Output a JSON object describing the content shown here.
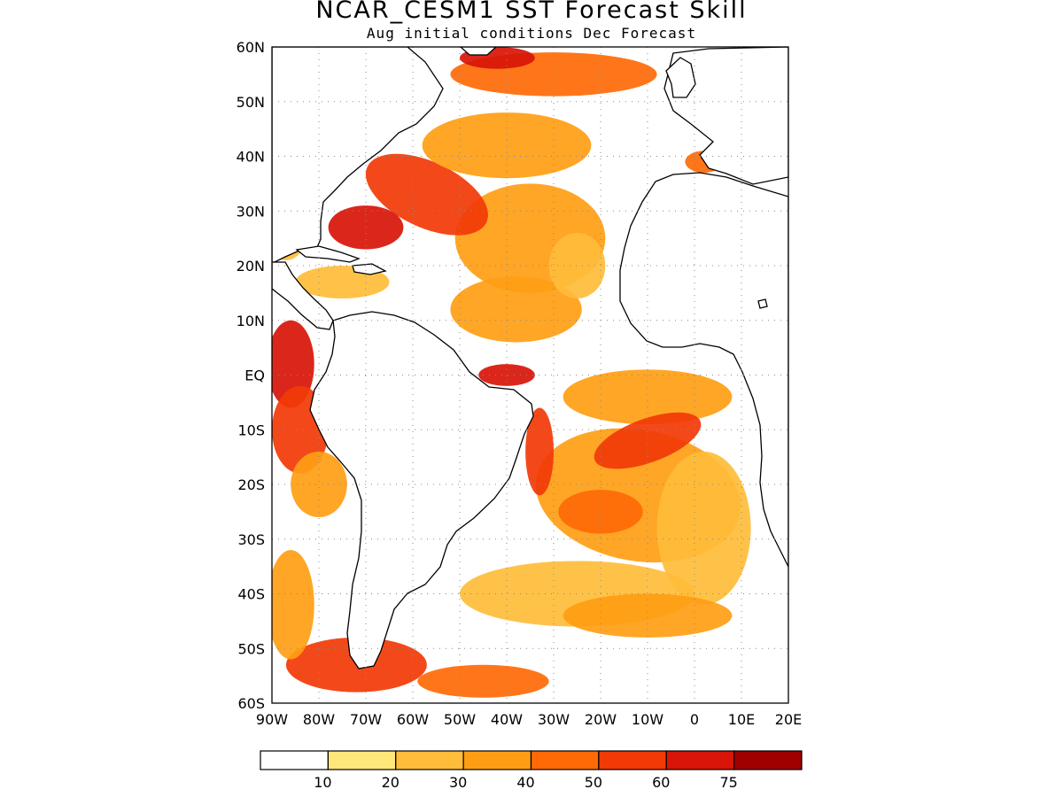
{
  "title": "NCAR_CESM1  SST Forecast Skill",
  "subtitle": "Aug initial conditions   Dec Forecast",
  "map": {
    "region": "Atlantic Ocean",
    "lon_range": [
      -90,
      20
    ],
    "lat_range": [
      -60,
      60
    ],
    "grid": "dotted",
    "lat_ticks": [
      {
        "label": "60N",
        "lat": 60
      },
      {
        "label": "50N",
        "lat": 50
      },
      {
        "label": "40N",
        "lat": 40
      },
      {
        "label": "30N",
        "lat": 30
      },
      {
        "label": "20N",
        "lat": 20
      },
      {
        "label": "10N",
        "lat": 10
      },
      {
        "label": "EQ",
        "lat": 0
      },
      {
        "label": "10S",
        "lat": -10
      },
      {
        "label": "20S",
        "lat": -20
      },
      {
        "label": "30S",
        "lat": -30
      },
      {
        "label": "40S",
        "lat": -40
      },
      {
        "label": "50S",
        "lat": -50
      },
      {
        "label": "60S",
        "lat": -60
      }
    ],
    "lon_ticks": [
      {
        "label": "90W",
        "lon": -90
      },
      {
        "label": "80W",
        "lon": -80
      },
      {
        "label": "70W",
        "lon": -70
      },
      {
        "label": "60W",
        "lon": -60
      },
      {
        "label": "50W",
        "lon": -50
      },
      {
        "label": "40W",
        "lon": -40
      },
      {
        "label": "30W",
        "lon": -30
      },
      {
        "label": "20W",
        "lon": -20
      },
      {
        "label": "10W",
        "lon": -10
      },
      {
        "label": "0",
        "lon": 0
      },
      {
        "label": "10E",
        "lon": 10
      },
      {
        "label": "20E",
        "lon": 20
      }
    ]
  },
  "colorbar": {
    "colors": [
      "#ffffff",
      "#ffe77a",
      "#ffbd3a",
      "#ff9e14",
      "#ff6a06",
      "#f23a06",
      "#d81508",
      "#a00000"
    ],
    "labels": [
      "10",
      "20",
      "30",
      "40",
      "50",
      "60",
      "75"
    ]
  },
  "skill_regions": [
    {
      "name": "south-atlantic-broad",
      "lon": -12,
      "lat": -22,
      "rx": 22,
      "ry": 12,
      "value": 35,
      "rot": 10
    },
    {
      "name": "south-atlantic-east",
      "lon": 2,
      "lat": -28,
      "rx": 10,
      "ry": 14,
      "value": 25,
      "rot": 0
    },
    {
      "name": "gulf-of-guinea",
      "lon": -10,
      "lat": -4,
      "rx": 18,
      "ry": 5,
      "value": 35,
      "rot": 0
    },
    {
      "name": "angola-benguela",
      "lon": -10,
      "lat": -12,
      "rx": 12,
      "ry": 4,
      "value": 55,
      "rot": -20
    },
    {
      "name": "brazil-coast",
      "lon": -33,
      "lat": -14,
      "rx": 3,
      "ry": 8,
      "value": 55,
      "rot": 0
    },
    {
      "name": "southeast-patch",
      "lon": -20,
      "lat": -25,
      "rx": 9,
      "ry": 4,
      "value": 45,
      "rot": 0
    },
    {
      "name": "subtropical-south",
      "lon": -25,
      "lat": -40,
      "rx": 25,
      "ry": 6,
      "value": 20,
      "rot": 0
    },
    {
      "name": "south-central-band",
      "lon": -10,
      "lat": -44,
      "rx": 18,
      "ry": 4,
      "value": 30,
      "rot": 0
    },
    {
      "name": "drake-passage",
      "lon": -72,
      "lat": -53,
      "rx": 15,
      "ry": 5,
      "value": 55,
      "rot": 0
    },
    {
      "name": "southern-ocean-west",
      "lon": -45,
      "lat": -56,
      "rx": 14,
      "ry": 3,
      "value": 40,
      "rot": 0
    },
    {
      "name": "south-pacific-edge",
      "lon": -86,
      "lat": -42,
      "rx": 5,
      "ry": 10,
      "value": 30,
      "rot": 0
    },
    {
      "name": "east-pacific-equator",
      "lon": -86,
      "lat": 2,
      "rx": 5,
      "ry": 8,
      "value": 70,
      "rot": 0
    },
    {
      "name": "peru-coast",
      "lon": -84,
      "lat": -10,
      "rx": 6,
      "ry": 8,
      "value": 55,
      "rot": 0
    },
    {
      "name": "chile-coast",
      "lon": -80,
      "lat": -20,
      "rx": 6,
      "ry": 6,
      "value": 30,
      "rot": 0
    },
    {
      "name": "north-atlantic-central",
      "lon": -35,
      "lat": 25,
      "rx": 16,
      "ry": 10,
      "value": 35,
      "rot": 0
    },
    {
      "name": "tropical-north",
      "lon": -38,
      "lat": 12,
      "rx": 14,
      "ry": 6,
      "value": 30,
      "rot": 0
    },
    {
      "name": "gulf-stream",
      "lon": -57,
      "lat": 33,
      "rx": 14,
      "ry": 6,
      "value": 55,
      "rot": 25
    },
    {
      "name": "sargasso",
      "lon": -70,
      "lat": 27,
      "rx": 8,
      "ry": 4,
      "value": 65,
      "rot": 0
    },
    {
      "name": "caribbean",
      "lon": -75,
      "lat": 17,
      "rx": 10,
      "ry": 3,
      "value": 25,
      "rot": 0
    },
    {
      "name": "gulf-of-mexico",
      "lon": -87,
      "lat": 25,
      "rx": 4,
      "ry": 4,
      "value": 25,
      "rot": 0
    },
    {
      "name": "north-central",
      "lon": -40,
      "lat": 42,
      "rx": 18,
      "ry": 6,
      "value": 30,
      "rot": 0
    },
    {
      "name": "subpolar-gyre",
      "lon": -30,
      "lat": 55,
      "rx": 22,
      "ry": 4,
      "value": 40,
      "rot": 0
    },
    {
      "name": "labrador-band",
      "lon": -42,
      "lat": 58,
      "rx": 8,
      "ry": 2,
      "value": 60,
      "rot": 0
    },
    {
      "name": "equatorial-north",
      "lon": -40,
      "lat": 0,
      "rx": 6,
      "ry": 2,
      "value": 65,
      "rot": 0
    },
    {
      "name": "west-african-off",
      "lon": -25,
      "lat": 20,
      "rx": 6,
      "ry": 6,
      "value": 25,
      "rot": 0
    },
    {
      "name": "mediterranean",
      "lon": 2,
      "lat": 39,
      "rx": 4,
      "ry": 2,
      "value": 40,
      "rot": 0
    }
  ]
}
